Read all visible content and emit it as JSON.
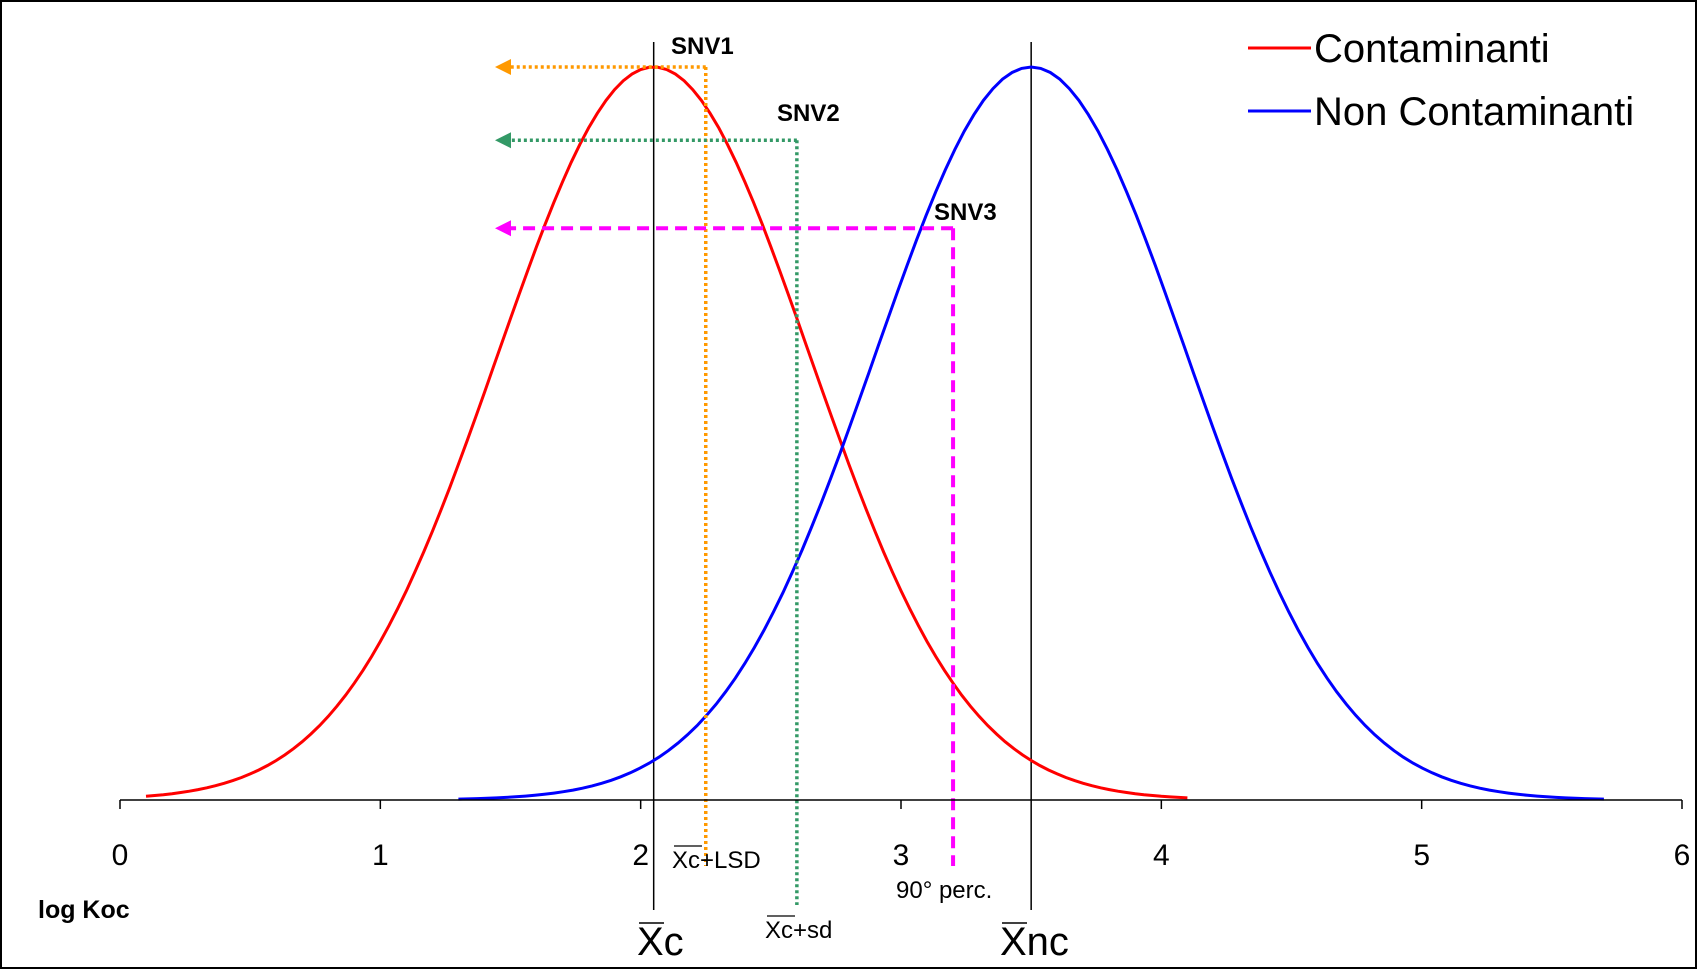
{
  "chart_data": {
    "type": "line",
    "xlabel": "log Koc",
    "ylabel": "",
    "xlim": [
      0,
      6
    ],
    "ylim": [
      0,
      1
    ],
    "x_ticks": [
      "0",
      "1",
      "2",
      "3",
      "4",
      "5",
      "6"
    ],
    "grid": false,
    "legend_position": "top-right",
    "series": [
      {
        "name": "Contaminanti",
        "color": "#ff0000",
        "mean": 2.05,
        "sd": 0.6,
        "x_range": [
          0.1,
          4.1
        ]
      },
      {
        "name": "Non Contaminanti",
        "color": "#0000ff",
        "mean": 3.5,
        "sd": 0.6,
        "x_range": [
          1.3,
          5.7
        ]
      }
    ],
    "vertical_lines": [
      {
        "x": 2.05,
        "label": "Xc",
        "color": "#000000"
      },
      {
        "x": 3.5,
        "label": "Xnc",
        "color": "#000000"
      }
    ],
    "thresholds": [
      {
        "name": "SNV1",
        "x": 2.25,
        "level": 1.0,
        "color": "#ff9900",
        "marker_label": "Xc+LSD"
      },
      {
        "name": "SNV2",
        "x": 2.6,
        "level": 0.9,
        "color": "#339966",
        "marker_label": "Xc+sd"
      },
      {
        "name": "SNV3",
        "x": 3.2,
        "level": 0.78,
        "color": "#ff00ff",
        "marker_label": "90° perc."
      }
    ],
    "annotations": [
      "SNV1",
      "SNV2",
      "SNV3",
      "Xc",
      "Xnc",
      "Xc+LSD",
      "Xc+sd",
      "90° perc."
    ]
  }
}
